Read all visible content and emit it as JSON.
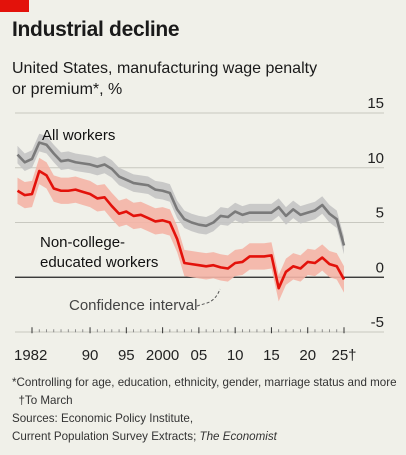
{
  "header": {
    "title": "Industrial decline",
    "subtitle": "United States, manufacturing wage penalty or premium*, %"
  },
  "footer": {
    "note": "*Controlling for age, education, ethnicity, gender, marriage status and more",
    "note2": "†To March",
    "sources": "Sources: Economic Policy Institute,",
    "sources2": "Current Population Survey Extracts;",
    "sources_italic": "The Economist"
  },
  "chart_data": {
    "type": "line",
    "x": [
      1980,
      1981,
      1982,
      1983,
      1984,
      1985,
      1986,
      1987,
      1988,
      1989,
      1990,
      1991,
      1992,
      1993,
      1994,
      1995,
      1996,
      1997,
      1998,
      1999,
      2000,
      2001,
      2002,
      2003,
      2004,
      2005,
      2006,
      2007,
      2008,
      2009,
      2010,
      2011,
      2012,
      2013,
      2014,
      2015,
      2016,
      2017,
      2018,
      2019,
      2020,
      2021,
      2022,
      2023,
      2024,
      2025
    ],
    "x_tick_labels": [
      "1982",
      "90",
      "95",
      "2000",
      "05",
      "10",
      "15",
      "20",
      "25†"
    ],
    "x_tick_values": [
      1982,
      1990,
      1995,
      2000,
      2005,
      2010,
      2015,
      2020,
      2025
    ],
    "ylim": [
      -5,
      15
    ],
    "y_ticks": [
      -5,
      0,
      5,
      10,
      15
    ],
    "series": [
      {
        "name": "All workers",
        "color": "#7a7a7a",
        "band_color": "#c4c4c4",
        "values": [
          11.2,
          10.5,
          10.8,
          12.3,
          12.1,
          11.3,
          10.6,
          10.7,
          10.5,
          10.4,
          10.3,
          10.1,
          10.3,
          9.9,
          9.2,
          8.9,
          8.6,
          8.5,
          8.4,
          8.0,
          7.9,
          7.7,
          6.2,
          5.3,
          5.0,
          4.8,
          4.7,
          5.0,
          5.6,
          5.5,
          6.0,
          5.7,
          5.9,
          5.9,
          5.9,
          5.9,
          6.4,
          5.6,
          6.2,
          5.7,
          5.9,
          6.1,
          6.6,
          5.8,
          5.3,
          2.9
        ],
        "band_halfwidth": 0.8
      },
      {
        "name": "Non-college-educated workers",
        "color": "#e3120b",
        "band_color": "#f4b4a6",
        "values": [
          7.9,
          7.5,
          7.6,
          9.7,
          9.3,
          8.1,
          7.9,
          7.9,
          8.0,
          7.8,
          7.6,
          7.2,
          7.3,
          6.5,
          5.8,
          6.0,
          5.6,
          5.7,
          5.4,
          5.1,
          5.2,
          5.0,
          3.5,
          1.3,
          1.2,
          1.1,
          1.0,
          1.1,
          0.9,
          0.8,
          1.3,
          1.4,
          1.9,
          1.9,
          1.9,
          2.0,
          -1.0,
          0.5,
          1.0,
          0.8,
          1.4,
          1.3,
          1.8,
          1.2,
          1.0,
          -0.2
        ],
        "band_halfwidth": 1.2
      }
    ],
    "annotations": [
      "All workers",
      "Non-college-",
      "educated workers",
      "Confidence interval"
    ],
    "grid": true
  }
}
